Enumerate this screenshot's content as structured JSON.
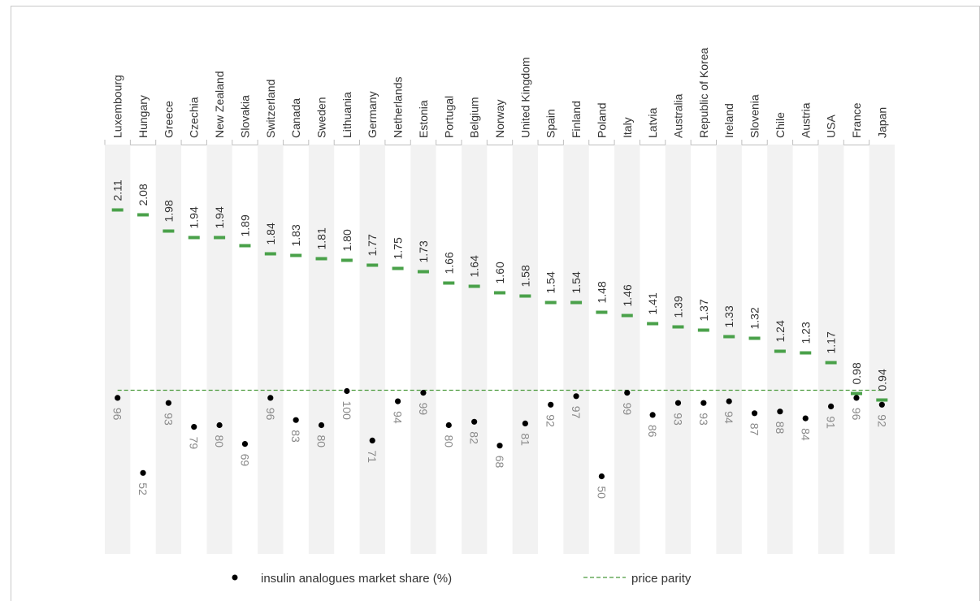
{
  "chart_data": {
    "type": "scatter",
    "categories": [
      "Luxembourg",
      "Hungary",
      "Greece",
      "Czechia",
      "New Zealand",
      "Slovakia",
      "Switzerland",
      "Canada",
      "Sweden",
      "Lithuania",
      "Germany",
      "Netherlands",
      "Estonia",
      "Portugal",
      "Belgium",
      "Norway",
      "United Kingdom",
      "Spain",
      "Finland",
      "Poland",
      "Italy",
      "Latvia",
      "Australia",
      "Republic of Korea",
      "Ireland",
      "Slovenia",
      "Chile",
      "Austria",
      "USA",
      "France",
      "Japan"
    ],
    "price_ratio": [
      2.11,
      2.08,
      1.98,
      1.94,
      1.94,
      1.89,
      1.84,
      1.83,
      1.81,
      1.8,
      1.77,
      1.75,
      1.73,
      1.66,
      1.64,
      1.6,
      1.58,
      1.54,
      1.54,
      1.48,
      1.46,
      1.41,
      1.39,
      1.37,
      1.33,
      1.32,
      1.24,
      1.23,
      1.17,
      0.98,
      0.94
    ],
    "price_labels": [
      "2.11",
      "2.08",
      "1.98",
      "1.94",
      "1.94",
      "1.89",
      "1.84",
      "1.83",
      "1.81",
      "1.80",
      "1.77",
      "1.75",
      "1.73",
      "1.66",
      "1.64",
      "1.60",
      "1.58",
      "1.54",
      "1.54",
      "1.48",
      "1.46",
      "1.41",
      "1.39",
      "1.37",
      "1.33",
      "1.32",
      "1.24",
      "1.23",
      "1.17",
      "0.98",
      "0.94"
    ],
    "market_share": [
      96,
      52,
      93,
      79,
      80,
      69,
      96,
      83,
      80,
      100,
      71,
      94,
      99,
      80,
      82,
      68,
      81,
      92,
      97,
      50,
      99,
      86,
      93,
      93,
      94,
      87,
      88,
      84,
      91,
      96,
      92
    ],
    "market_share_labels": [
      "96",
      "52",
      "93",
      "79",
      "80",
      "69",
      "96",
      "83",
      "80",
      "100",
      "71",
      "94",
      "99",
      "80",
      "82",
      "68",
      "81",
      "92",
      "97",
      "50",
      "99",
      "86",
      "93",
      "93",
      "94",
      "87",
      "88",
      "84",
      "91",
      "96",
      "92"
    ],
    "price_parity": 1.0,
    "legend": [
      {
        "label": "insulin analogues market share (%)",
        "marker": "dot",
        "color": "#000000"
      },
      {
        "label": "price parity",
        "marker": "dashed-line",
        "color": "#4a9a3c"
      }
    ],
    "legend_position": "bottom",
    "colors": {
      "price_marker": "#4aa14a",
      "parity_line": "#4a9a3c",
      "share_dot": "#000000",
      "band": "#f2f2f2",
      "price_text": "#333333",
      "share_text": "#8a8a8a"
    }
  }
}
